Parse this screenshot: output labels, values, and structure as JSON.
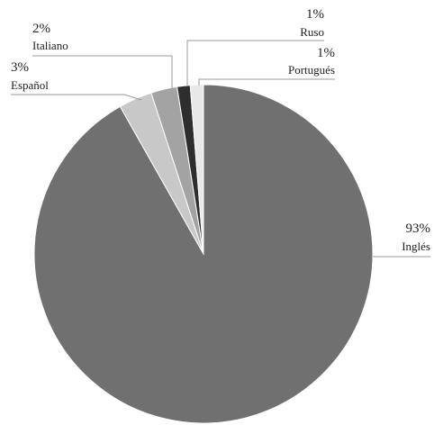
{
  "chart_data": {
    "type": "pie",
    "slices": [
      {
        "label": "Inglés",
        "value": 93,
        "pct_label": "93%",
        "color": "#707070"
      },
      {
        "label": "Español",
        "value": 3,
        "pct_label": "3%",
        "color": "#c8c8c8"
      },
      {
        "label": "Italiano",
        "value": 2,
        "pct_label": "2%",
        "color": "#a3a3a3"
      },
      {
        "label": "Ruso",
        "value": 1,
        "pct_label": "1%",
        "color": "#2e2e2e"
      },
      {
        "label": "Portugués",
        "value": 1,
        "pct_label": "1%",
        "color": "#e8e8e8"
      }
    ]
  }
}
